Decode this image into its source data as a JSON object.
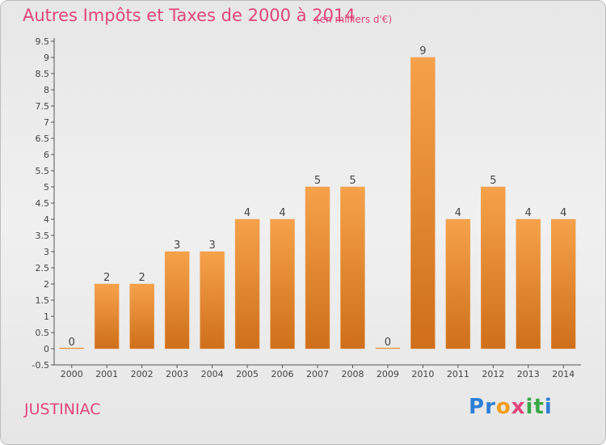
{
  "title": "Autres Impôts et Taxes de 2000 à 2014",
  "title_unit": "(en milliers d'€)",
  "place": "JUSTINIAC",
  "logo": {
    "letters": [
      "P",
      "r",
      "o",
      "x",
      "i",
      "t",
      "i"
    ],
    "colors": [
      "#2f7fd6",
      "#2f7fd6",
      "#f39c1a",
      "#e0457b",
      "#39a845",
      "#39a845",
      "#2f7fd6"
    ]
  },
  "chart_data": {
    "type": "bar",
    "categories": [
      "2000",
      "2001",
      "2002",
      "2003",
      "2004",
      "2005",
      "2006",
      "2007",
      "2008",
      "2009",
      "2010",
      "2011",
      "2012",
      "2013",
      "2014"
    ],
    "values": [
      0,
      2,
      2,
      3,
      3,
      4,
      4,
      5,
      5,
      0,
      9,
      4,
      5,
      4,
      4
    ],
    "data_labels": [
      "0",
      "2",
      "2",
      "3",
      "3",
      "4",
      "4",
      "5",
      "5",
      "0",
      "9",
      "4",
      "5",
      "4",
      "4"
    ],
    "yticks": [
      "-0.5",
      "0",
      "0.5",
      "1",
      "1.5",
      "2",
      "2.5",
      "3",
      "3.5",
      "4",
      "4.5",
      "5",
      "5.5",
      "6",
      "6.5",
      "7",
      "7.5",
      "8",
      "8.5",
      "9",
      "9.5"
    ],
    "ylim": [
      -0.5,
      9.5
    ],
    "bar_color": "#f08c2e",
    "grid": false,
    "legend": "none"
  }
}
